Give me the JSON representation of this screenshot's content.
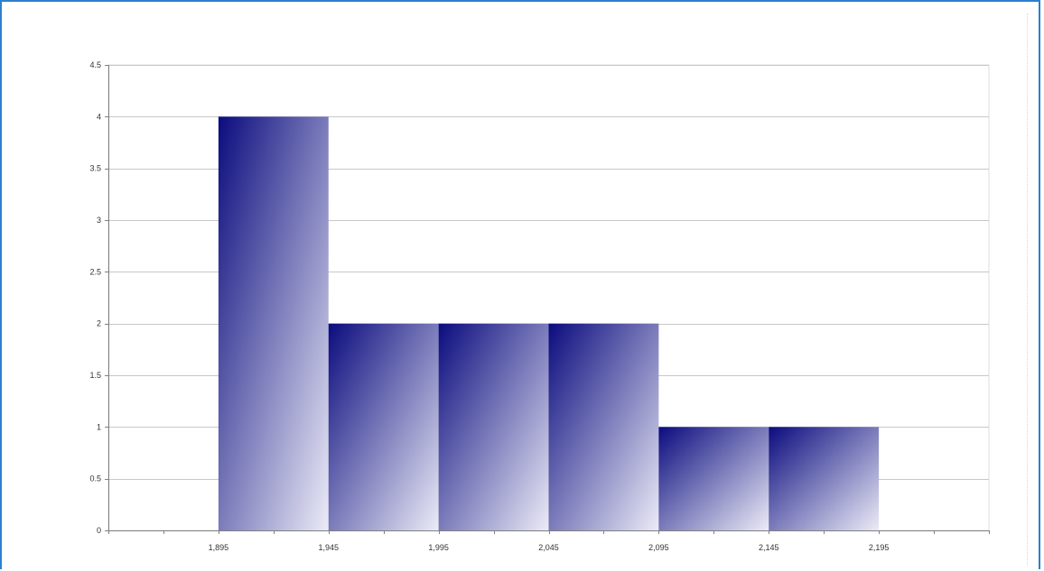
{
  "chart_data": {
    "type": "bar",
    "subtype": "histogram",
    "bins": [
      {
        "x0": 1895,
        "x1": 1945,
        "value": 4
      },
      {
        "x0": 1945,
        "x1": 1995,
        "value": 2
      },
      {
        "x0": 1995,
        "x1": 2045,
        "value": 2
      },
      {
        "x0": 2045,
        "x1": 2095,
        "value": 2
      },
      {
        "x0": 2095,
        "x1": 2145,
        "value": 1
      },
      {
        "x0": 2145,
        "x1": 2195,
        "value": 1
      }
    ],
    "xlim": [
      1845,
      2245
    ],
    "ylim": [
      0,
      4.5
    ],
    "x_tick_labels": [
      "1,895",
      "1,945",
      "1,995",
      "2,045",
      "2,095",
      "2,145",
      "2,195"
    ],
    "x_tick_values": [
      1895,
      1945,
      1995,
      2045,
      2095,
      2145,
      2195
    ],
    "y_tick_labels": [
      "0",
      "0.5",
      "1",
      "1.5",
      "2",
      "2.5",
      "3",
      "3.5",
      "4",
      "4.5"
    ],
    "y_tick_values": [
      0,
      0.5,
      1,
      1.5,
      2,
      2.5,
      3,
      3.5,
      4,
      4.5
    ],
    "title": "",
    "xlabel": "",
    "ylabel": "",
    "grid": "horizontal",
    "legend": "none",
    "colors": {
      "bar_dark": "#0b0c7e",
      "bar_light": "#ebebf7",
      "grid": "#c8c8c8",
      "axis": "#808080",
      "frame_border": "#2b7fd0"
    }
  }
}
